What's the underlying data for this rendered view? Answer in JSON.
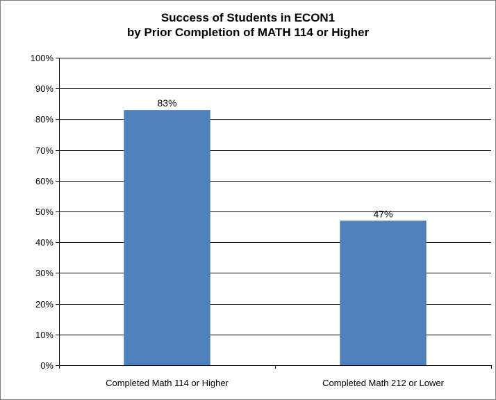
{
  "chart_data": {
    "type": "bar",
    "title": "Success of Students in ECON1",
    "subtitle": "by Prior Completion of MATH 114 or Higher",
    "categories": [
      "Completed Math 114 or Higher",
      "Completed Math 212 or Lower"
    ],
    "values": [
      83,
      47
    ],
    "data_labels": [
      "83%",
      "47%"
    ],
    "ylim": [
      0,
      100
    ],
    "yticks": [
      0,
      10,
      20,
      30,
      40,
      50,
      60,
      70,
      80,
      90,
      100
    ],
    "ytick_labels": [
      "0%",
      "10%",
      "20%",
      "30%",
      "40%",
      "50%",
      "60%",
      "70%",
      "80%",
      "90%",
      "100%"
    ],
    "xlabel": "",
    "ylabel": "",
    "grid": true,
    "legend": "none",
    "bar_color": "#4f81bd"
  }
}
